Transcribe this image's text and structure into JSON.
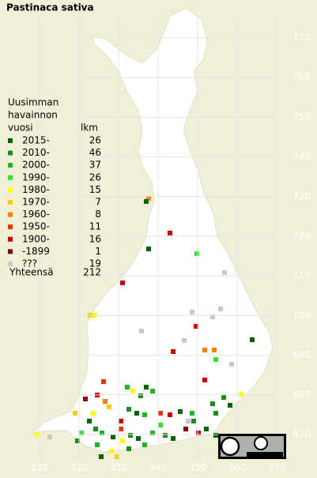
{
  "title": "Pastinaca sativa",
  "legend": {
    "heading": [
      "Uusimman",
      "havainnon",
      "vuosi"
    ],
    "count_header": "lkm",
    "entries": [
      {
        "label": "2015-",
        "count": "26",
        "color": "#006400"
      },
      {
        "label": "2010-",
        "count": "46",
        "color": "#1a8c1a"
      },
      {
        "label": "2000-",
        "count": "37",
        "color": "#22b422"
      },
      {
        "label": "1990-",
        "count": "26",
        "color": "#33e033"
      },
      {
        "label": "1980-",
        "count": "15",
        "color": "#ffff00"
      },
      {
        "label": "1970-",
        "count": "7",
        "color": "#ffcc00"
      },
      {
        "label": "1960-",
        "count": "8",
        "color": "#ff8000"
      },
      {
        "label": "1950-",
        "count": "11",
        "color": "#ee3300"
      },
      {
        "label": "1900-",
        "count": "16",
        "color": "#cc0000"
      },
      {
        "label": "-1899",
        "count": "1",
        "color": "#880000"
      },
      {
        "label": "???",
        "count": "19",
        "color": "#c8c8c8"
      }
    ],
    "total": {
      "label": "Yhteensä",
      "count": "212"
    }
  },
  "grid": {
    "x_labels": [
      "310",
      "320",
      "330",
      "340",
      "350",
      "360",
      "370"
    ],
    "y_labels": [
      "770",
      "760",
      "750",
      "740",
      "730",
      "720",
      "710",
      "700",
      "690",
      "680",
      "670"
    ]
  }
}
